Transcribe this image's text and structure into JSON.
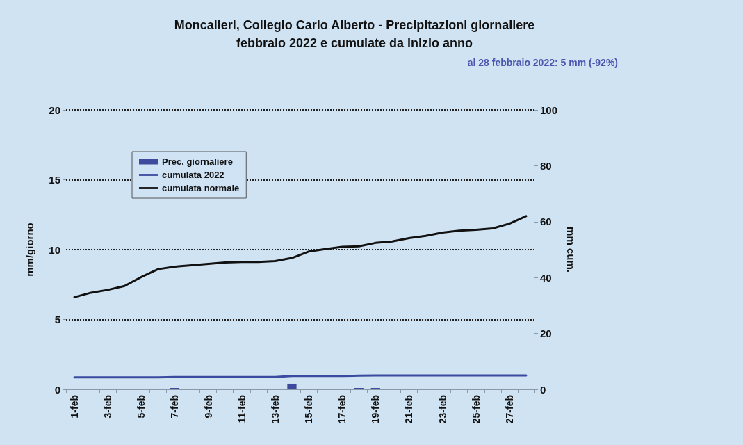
{
  "chart_data": {
    "type": "bar",
    "title": "Moncalieri, Collegio Carlo Alberto - Precipitazioni giornaliere\nfebbraio 2022 e cumulate da inizio anno",
    "annotations": [
      "al 28 febbraio 2022: 5 mm (-92%)"
    ],
    "ylabel": "mm/giorno",
    "y2label": "mm cum.",
    "categories": [
      "1-feb",
      null,
      "3-feb",
      null,
      "5-feb",
      null,
      "7-feb",
      null,
      "9-feb",
      null,
      "11-feb",
      null,
      "13-feb",
      null,
      "15-feb",
      null,
      "17-feb",
      null,
      "19-feb",
      null,
      "21-feb",
      null,
      "23-feb",
      null,
      "25-feb",
      null,
      "27-feb",
      null
    ],
    "series": [
      {
        "name": "Prec. giornaliere",
        "color": "#3d4a9e",
        "values": [
          0,
          0,
          0,
          0,
          0,
          0,
          0.1,
          0,
          0,
          0,
          0,
          0,
          0,
          0.4,
          0,
          0,
          0,
          0.1,
          0.1,
          0,
          0,
          0,
          0,
          0,
          0,
          0,
          0,
          0
        ]
      },
      {
        "name": "cumulata 2022",
        "type": "line",
        "axis": "y2",
        "color": "#3b4ba0",
        "values": [
          4.3,
          4.3,
          4.3,
          4.3,
          4.3,
          4.3,
          4.4,
          4.4,
          4.4,
          4.4,
          4.4,
          4.4,
          4.4,
          4.8,
          4.8,
          4.8,
          4.8,
          4.9,
          5.0,
          5.0,
          5.0,
          5.0,
          5.0,
          5.0,
          5.0,
          5.0,
          5.0,
          5.0
        ]
      },
      {
        "name": "cumulata normale",
        "type": "line",
        "axis": "y2",
        "color": "#111111",
        "values": [
          33,
          34.6,
          35.6,
          37,
          40.2,
          43,
          43.9,
          44.4,
          44.9,
          45.4,
          45.6,
          45.6,
          45.9,
          47,
          49.3,
          50.2,
          51,
          51.2,
          52.4,
          52.9,
          54.1,
          54.9,
          56.1,
          56.8,
          57.1,
          57.6,
          59.3,
          62
        ]
      }
    ],
    "ylim": [
      0,
      20
    ],
    "yticks": [
      0,
      5,
      10,
      15,
      20
    ],
    "y2lim": [
      0,
      100
    ],
    "y2ticks": [
      0,
      20,
      40,
      60,
      80,
      100
    ],
    "grid": "y",
    "legend": "top left",
    "marker": "none",
    "line_style": "solid"
  }
}
